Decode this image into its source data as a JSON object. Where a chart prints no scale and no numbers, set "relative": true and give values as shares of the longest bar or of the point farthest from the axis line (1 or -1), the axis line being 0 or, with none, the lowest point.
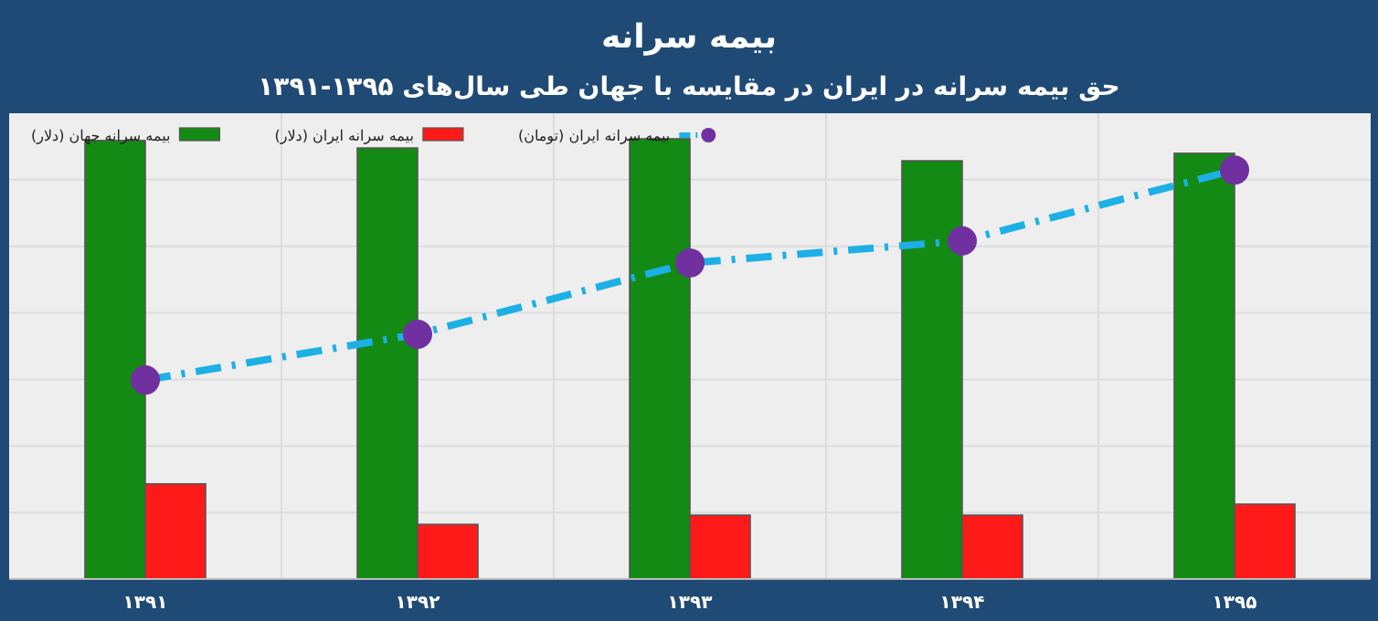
{
  "chart_data": {
    "type": "bar",
    "title": "بیمه سرانه",
    "subtitle": "حق بیمه سرانه در ایران در مقایسه با جهان طی سال‌های ۱۳۹۵-۱۳۹۱",
    "categories": [
      "۱۳۹۱",
      "۱۳۹۲",
      "۱۳۹۳",
      "۱۳۹۴",
      "۱۳۹۵"
    ],
    "relative": true,
    "grid": true,
    "legend": "top left",
    "marker": "circle",
    "line_style": "dashed",
    "series": [
      {
        "name": "بیمه سرانه جهان (دلار)",
        "color": "#138a13",
        "values": [
          0.996,
          0.979,
          1,
          0.95,
          0.967
        ]
      },
      {
        "name": "بیمه سرانه ایران (دلار)",
        "color": "#ff1a1a",
        "values": [
          0.216,
          0.124,
          0.145,
          0.145,
          0.17
        ]
      },
      {
        "name": "بیمه سرانه ایران (تومان)",
        "type": "line",
        "color": "#1cb0e6",
        "values": [
          0.452,
          0.556,
          0.718,
          0.768,
          0.929
        ]
      }
    ]
  }
}
